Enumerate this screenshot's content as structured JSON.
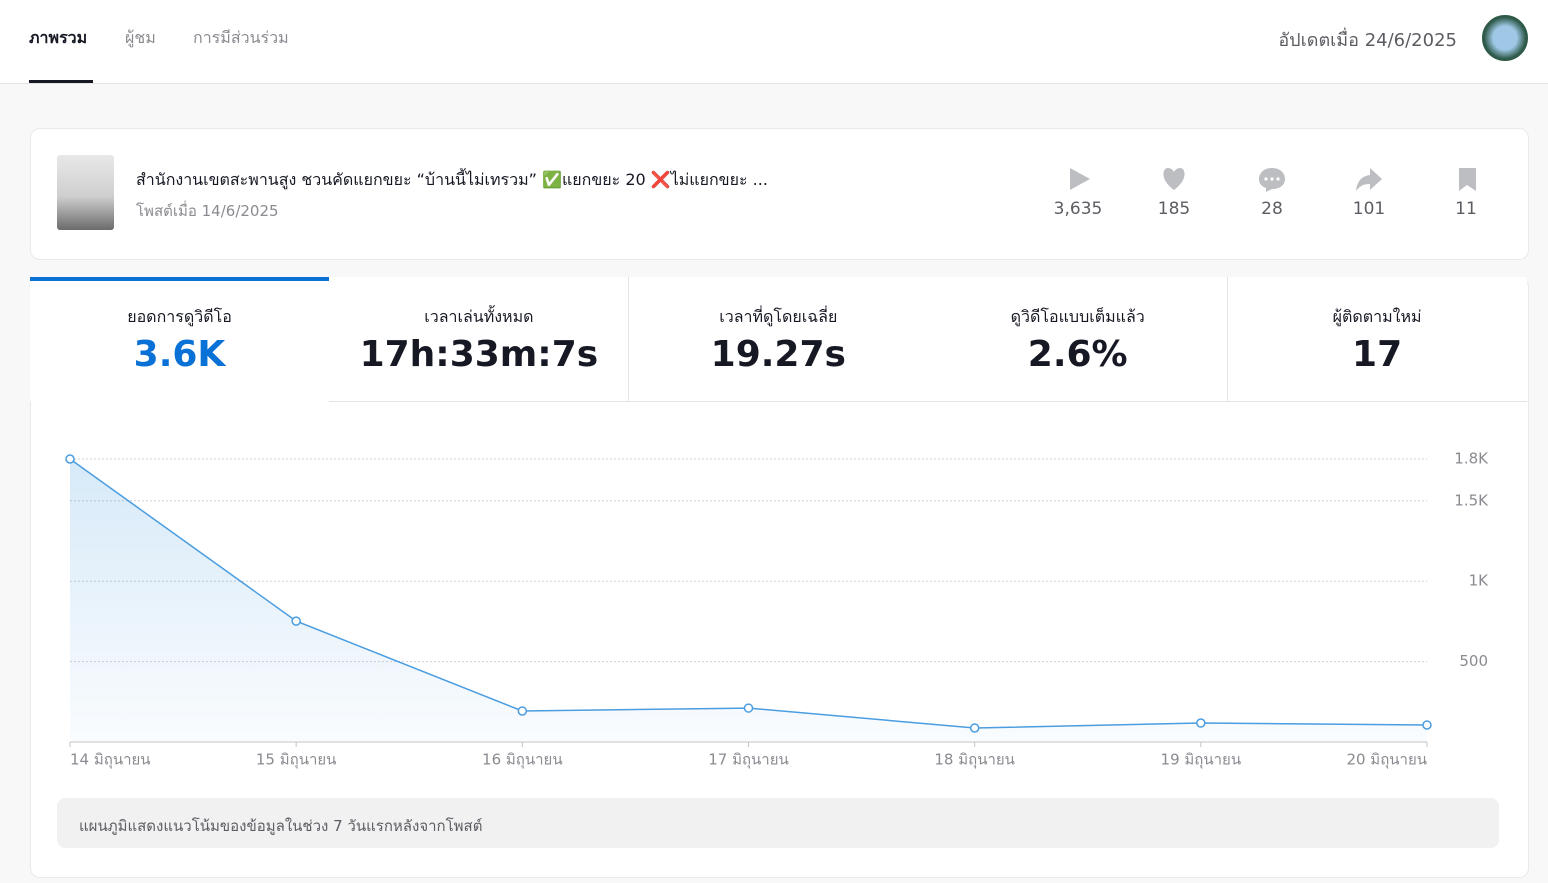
{
  "nav": {
    "tabs": [
      "ภาพรวม",
      "ผู้ชม",
      "การมีส่วนร่วม"
    ],
    "updated": "อัปเดตเมื่อ 24/6/2025"
  },
  "post": {
    "title": "สำนักงานเขตสะพานสูง ชวนคัดแยกขยะ “บ้านนี้ไม่เทรวม” ✅แยกขยะ 20 ❌ไม่แยกขยะ ...",
    "date": "โพสต์เมื่อ 14/6/2025",
    "stats": [
      "3,635",
      "185",
      "28",
      "101",
      "11"
    ]
  },
  "metrics": [
    {
      "label": "ยอดการดูวิดีโอ",
      "value": "3.6K"
    },
    {
      "label": "เวลาเล่นทั้งหมด",
      "value": "17h:33m:7s"
    },
    {
      "label": "เวลาที่ดูโดยเฉลี่ย",
      "value": "19.27s"
    },
    {
      "label": "ดูวิดีโอแบบเต็มแล้ว",
      "value": "2.6%"
    },
    {
      "label": "ผู้ติดตามใหม่",
      "value": "17"
    }
  ],
  "chart_data": {
    "type": "line",
    "categories": [
      "14 มิถุนายน",
      "15 มิถุนายน",
      "16 มิถุนายน",
      "17 มิถุนายน",
      "18 มิถุนายน",
      "19 มิถุนายน",
      "20 มิถุนายน"
    ],
    "values": [
      1760,
      752,
      193,
      211,
      87,
      118,
      106
    ],
    "color": "#4a9de0",
    "ylim": [
      0,
      1760
    ],
    "yticks": [
      500,
      {
        "value": 1000,
        "label": "1K"
      },
      {
        "value": 1500,
        "label": "1.5K"
      },
      {
        "value": 1760,
        "label": "1.8K"
      }
    ],
    "grid": true
  },
  "note": "แผนภูมิแสดงแนวโน้มของข้อมูลในช่วง 7 วันแรกหลังจากโพสต์"
}
